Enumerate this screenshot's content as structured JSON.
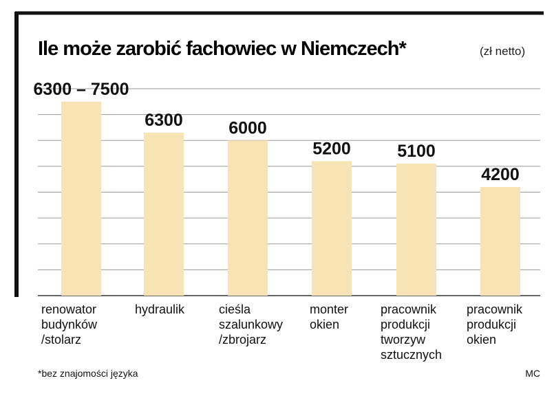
{
  "chart_data": {
    "type": "bar",
    "title": "Ile może zarobić fachowiec w Niemczech*",
    "subtitle": "(zł netto)",
    "categories": [
      "renowator\nbudynków\n/stolarz",
      "hydraulik",
      "cieśla\nszalunkowy\n/zbrojarz",
      "monter\nokien",
      "pracownik\nprodukcji\ntworzyw\nsztucznych",
      "pracownik\nprodukcji\nokien"
    ],
    "values": [
      7500,
      6300,
      6000,
      5200,
      5100,
      4200
    ],
    "value_labels": [
      "6300 – 7500",
      "6300",
      "6000",
      "5200",
      "5100",
      "4200"
    ],
    "color": "#f7e4b5",
    "ylim": [
      0,
      8000
    ],
    "yticks": [
      0,
      1000,
      2000,
      3000,
      4000,
      5000,
      6000,
      7000,
      8000
    ],
    "grid": true,
    "footnote": "*bez znajomości języka",
    "source": "MC"
  }
}
